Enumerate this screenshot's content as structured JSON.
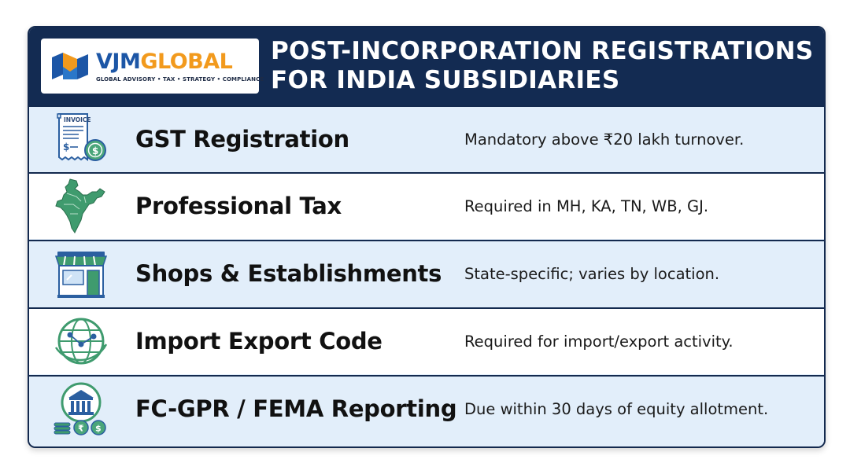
{
  "logo": {
    "name_part1": "VJM",
    "name_part2": "GLOBAL",
    "tagline": "GLOBAL ADVISORY • TAX • STRATEGY • COMPLIANCE"
  },
  "title": {
    "line1": "POST-INCORPORATION REGISTRATIONS",
    "line2": "FOR INDIA SUBSIDIARIES"
  },
  "rows": [
    {
      "icon": "invoice-icon",
      "name": "GST Registration",
      "desc": "Mandatory above ₹20 lakh turnover."
    },
    {
      "icon": "india-map-icon",
      "name": "Professional Tax",
      "desc": "Required in MH, KA, TN, WB, GJ."
    },
    {
      "icon": "shop-icon",
      "name": "Shops & Establishments",
      "desc": "State-specific; varies by location."
    },
    {
      "icon": "globe-network-icon",
      "name": "Import Export Code",
      "desc": "Required for import/export activity."
    },
    {
      "icon": "bank-coins-icon",
      "name": "FC-GPR / FEMA Reporting",
      "desc": "Due within 30 days of equity allotment."
    }
  ],
  "invoice_icon_label": "INVOICE",
  "colors": {
    "header_bg": "#132b52",
    "row_alt_bg": "#e2eefa",
    "logo_blue": "#1c56a6",
    "logo_orange": "#f29a1d",
    "icon_green": "#3f9b6e"
  }
}
